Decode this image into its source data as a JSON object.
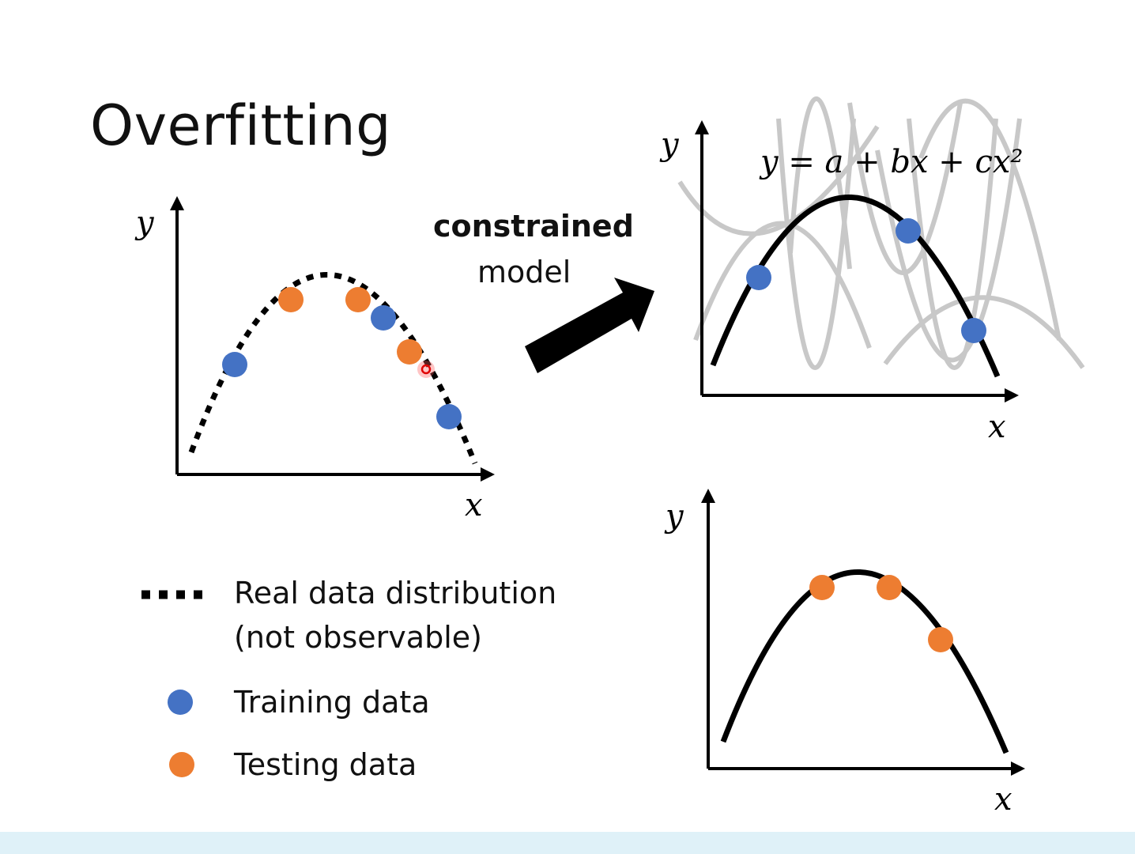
{
  "slide": {
    "title": "Overfitting",
    "arrow_caption": {
      "strong": "constrained",
      "normal": "model"
    },
    "equation": "y = a + bx + cx²"
  },
  "axes": {
    "x_label": "x",
    "y_label": "y"
  },
  "legend": {
    "real_line1": "Real data distribution",
    "real_line2": "(not observable)",
    "training": "Training data",
    "testing": "Testing data"
  },
  "colors": {
    "training": "#4472c4",
    "testing": "#ed7d31",
    "curve": "#000000",
    "candidate_curves": "#c8c8c8",
    "bottom_band": "#dff1f8"
  },
  "icons": [
    "thick-right-up-arrow-icon",
    "blue-dot-icon",
    "orange-dot-icon",
    "dotted-line-icon"
  ]
}
